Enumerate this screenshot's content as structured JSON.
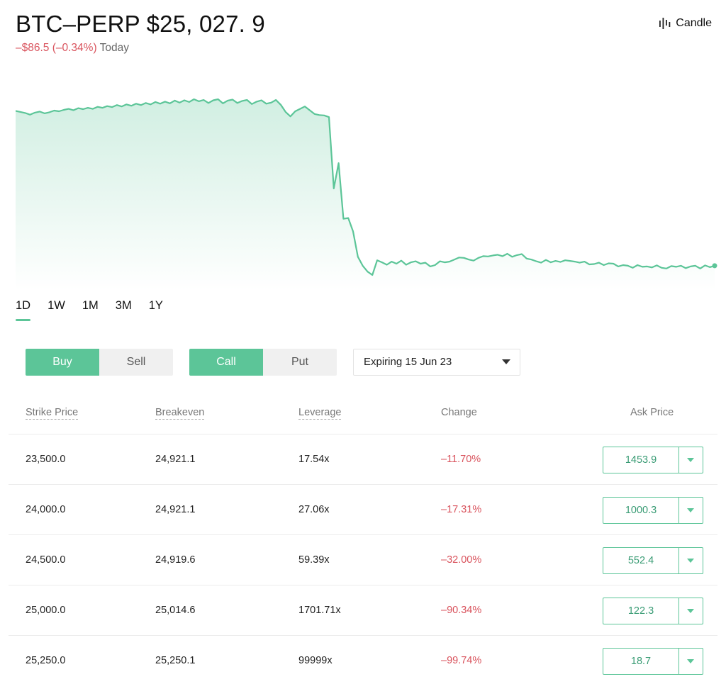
{
  "header": {
    "title": "BTC–PERP $25, 027. 9",
    "delta": "–$86.5 (–0.34%)",
    "period": "Today",
    "candle_label": "Candle"
  },
  "chart_data": {
    "type": "area",
    "title": "",
    "xlabel": "",
    "ylabel": "",
    "grid": false,
    "values": [
      25190,
      25187,
      25184,
      25179,
      25185,
      25188,
      25183,
      25186,
      25191,
      25189,
      25193,
      25196,
      25192,
      25198,
      25195,
      25199,
      25196,
      25202,
      25199,
      25204,
      25201,
      25207,
      25203,
      25209,
      25205,
      25211,
      25207,
      25213,
      25209,
      25216,
      25211,
      25217,
      25212,
      25220,
      25214,
      25221,
      25216,
      25224,
      25218,
      25222,
      25213,
      25221,
      25224,
      25212,
      25220,
      25223,
      25213,
      25219,
      25222,
      25210,
      25217,
      25221,
      25211,
      25214,
      25222,
      25208,
      25187,
      25174,
      25189,
      25196,
      25203,
      25192,
      25181,
      25178,
      25177,
      25172,
      24964,
      25038,
      24876,
      24878,
      24839,
      24765,
      24739,
      24722,
      24712,
      24755,
      24749,
      24742,
      24751,
      24745,
      24754,
      24742,
      24749,
      24752,
      24745,
      24748,
      24737,
      24741,
      24752,
      24749,
      24751,
      24757,
      24763,
      24762,
      24757,
      24754,
      24762,
      24767,
      24766,
      24769,
      24771,
      24767,
      24774,
      24765,
      24770,
      24773,
      24760,
      24757,
      24752,
      24748,
      24756,
      24749,
      24753,
      24750,
      24755,
      24753,
      24751,
      24748,
      24751,
      24743,
      24744,
      24748,
      24741,
      24746,
      24745,
      24737,
      24741,
      24739,
      24733,
      24741,
      24736,
      24737,
      24734,
      24740,
      24733,
      24731,
      24738,
      24736,
      24739,
      24732,
      24737,
      24739,
      24731,
      24740,
      24735,
      24739
    ]
  },
  "ranges": [
    "1D",
    "1W",
    "1M",
    "3M",
    "1Y"
  ],
  "toggle_side": {
    "buy": "Buy",
    "sell": "Sell"
  },
  "toggle_type": {
    "call": "Call",
    "put": "Put"
  },
  "expiry": {
    "label": "Expiring 15 Jun 23"
  },
  "columns": {
    "strike": "Strike Price",
    "breakeven": "Breakeven",
    "leverage": "Leverage",
    "change": "Change",
    "ask": "Ask Price"
  },
  "rows": [
    {
      "strike": "23,500.0",
      "breakeven": "24,921.1",
      "leverage": "17.54x",
      "change": "–11.70%",
      "ask": "1453.9"
    },
    {
      "strike": "24,000.0",
      "breakeven": "24,921.1",
      "leverage": "27.06x",
      "change": "–17.31%",
      "ask": "1000.3"
    },
    {
      "strike": "24,500.0",
      "breakeven": "24,919.6",
      "leverage": "59.39x",
      "change": "–32.00%",
      "ask": "552.4"
    },
    {
      "strike": "25,000.0",
      "breakeven": "25,014.6",
      "leverage": "1701.71x",
      "change": "–90.34%",
      "ask": "122.3"
    },
    {
      "strike": "25,250.0",
      "breakeven": "25,250.1",
      "leverage": "99999x",
      "change": "–99.74%",
      "ask": "18.7"
    }
  ],
  "colors": {
    "accent": "#5cc598",
    "negative": "#d9535d"
  }
}
